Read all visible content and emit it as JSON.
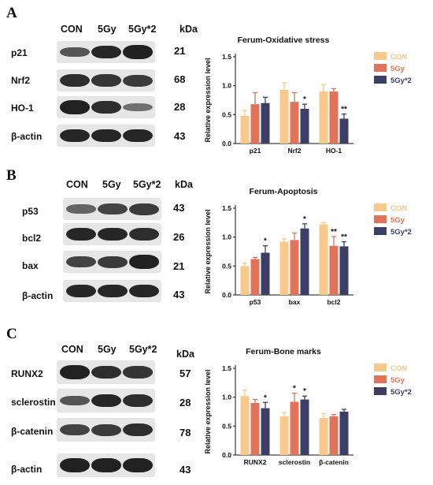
{
  "colors": {
    "con": "#f7c98a",
    "gy5": "#e0735a",
    "gy5x2": "#3b3f66",
    "blot_bg": "#e6e6e6",
    "band": "#1a1a1a"
  },
  "panels": [
    {
      "letter": "A",
      "lanes": [
        "CON",
        "5Gy",
        "5Gy*2"
      ],
      "kda": "kDa",
      "blots": [
        {
          "label": "p21",
          "mw": "21"
        },
        {
          "label": "Nrf2",
          "mw": "68"
        },
        {
          "label": "HO-1",
          "mw": "28"
        },
        {
          "label": "β-actin",
          "mw": "43"
        }
      ]
    },
    {
      "letter": "B",
      "lanes": [
        "CON",
        "5Gy",
        "5Gy*2"
      ],
      "kda": "kDa",
      "blots": [
        {
          "label": "p53",
          "mw": "43"
        },
        {
          "label": "bcl2",
          "mw": "26"
        },
        {
          "label": "bax",
          "mw": "21"
        },
        {
          "label": "β-actin",
          "mw": "43"
        }
      ]
    },
    {
      "letter": "C",
      "lanes": [
        "CON",
        "5Gy",
        "5Gy*2"
      ],
      "kda": "kDa",
      "blots": [
        {
          "label": "RUNX2",
          "mw": "57"
        },
        {
          "label": "sclerostin",
          "mw": "28"
        },
        {
          "label": "β-catenin",
          "mw": "78"
        },
        {
          "label": "β-actin",
          "mw": "43"
        }
      ]
    }
  ],
  "chart_data": [
    {
      "type": "bar",
      "title": "Ferum-Oxidative stress",
      "ylabel": "Relative expression level",
      "ylim": [
        0,
        1.5
      ],
      "yticks": [
        "0.0",
        "0.5",
        "1.0",
        "1.5"
      ],
      "categories": [
        "p21",
        "Nrf2",
        "HO-1"
      ],
      "legend_position": "top-right",
      "series": [
        {
          "name": "CON",
          "values": [
            0.48,
            0.93,
            0.9
          ],
          "errors": [
            0.09,
            0.12,
            0.12
          ]
        },
        {
          "name": "5Gy",
          "values": [
            0.68,
            0.72,
            0.9
          ],
          "errors": [
            0.2,
            0.16,
            0.05
          ]
        },
        {
          "name": "5Gy*2",
          "values": [
            0.7,
            0.6,
            0.43
          ],
          "errors": [
            0.1,
            0.08,
            0.08
          ]
        }
      ],
      "significance": [
        {
          "category": 1,
          "series": 2,
          "mark": "*"
        },
        {
          "category": 2,
          "series": 2,
          "mark": "**"
        }
      ]
    },
    {
      "type": "bar",
      "title": "Ferum-Apoptosis",
      "ylabel": "Relative expression level",
      "ylim": [
        0,
        1.5
      ],
      "yticks": [
        "0.0",
        "0.5",
        "1.0",
        "1.5"
      ],
      "categories": [
        "p53",
        "bax",
        "bcl2"
      ],
      "legend_position": "top-right",
      "series": [
        {
          "name": "CON",
          "values": [
            0.5,
            0.92,
            1.22
          ],
          "errors": [
            0.05,
            0.05,
            0.03
          ]
        },
        {
          "name": "5Gy",
          "values": [
            0.62,
            0.95,
            0.85
          ],
          "errors": [
            0.03,
            0.12,
            0.16
          ]
        },
        {
          "name": "5Gy*2",
          "values": [
            0.73,
            1.15,
            0.84
          ],
          "errors": [
            0.12,
            0.08,
            0.08
          ]
        }
      ],
      "significance": [
        {
          "category": 0,
          "series": 2,
          "mark": "*"
        },
        {
          "category": 1,
          "series": 2,
          "mark": "*"
        },
        {
          "category": 2,
          "series": 1,
          "mark": "**"
        },
        {
          "category": 2,
          "series": 2,
          "mark": "**"
        }
      ]
    },
    {
      "type": "bar",
      "title": "Ferum-Bone marks",
      "ylabel": "Relative expression level",
      "ylim": [
        0,
        1.5
      ],
      "yticks": [
        "0.0",
        "0.5",
        "1.0",
        "1.5"
      ],
      "categories": [
        "RUNX2",
        "sclerostin",
        "β-catenin"
      ],
      "legend_position": "top-right",
      "series": [
        {
          "name": "CON",
          "values": [
            1.02,
            0.67,
            0.64
          ],
          "errors": [
            0.1,
            0.06,
            0.08
          ]
        },
        {
          "name": "5Gy",
          "values": [
            0.9,
            0.92,
            0.67
          ],
          "errors": [
            0.06,
            0.15,
            0.03
          ]
        },
        {
          "name": "5Gy*2",
          "values": [
            0.81,
            0.96,
            0.75
          ],
          "errors": [
            0.1,
            0.06,
            0.04
          ]
        }
      ],
      "significance": [
        {
          "category": 0,
          "series": 2,
          "mark": "*"
        },
        {
          "category": 1,
          "series": 1,
          "mark": "*"
        },
        {
          "category": 1,
          "series": 2,
          "mark": "*"
        }
      ]
    }
  ]
}
